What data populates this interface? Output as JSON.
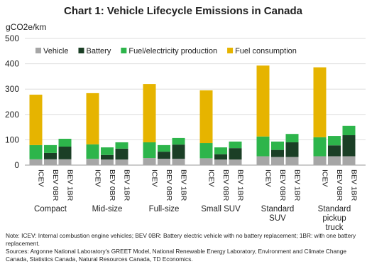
{
  "chart_data": {
    "type": "bar",
    "stacked": true,
    "title": "Chart 1: Vehicle Lifecycle Emissions in Canada",
    "y_label": "gCO2e/km",
    "groups": [
      "Compact",
      "Mid-size",
      "Full-size",
      "Small SUV",
      "Standard\nSUV",
      "Standard\npickup\ntruck"
    ],
    "subcategories": [
      "ICEV",
      "BEV 0BR",
      "BEV 1BR"
    ],
    "series": [
      {
        "name": "Vehicle",
        "color": "#a6a6a6",
        "values": [
          23,
          23,
          23,
          25,
          22,
          22,
          28,
          25,
          25,
          27,
          22,
          22,
          35,
          32,
          32,
          35,
          35,
          35
        ]
      },
      {
        "name": "Battery",
        "color": "#1b3f26",
        "values": [
          0,
          25,
          50,
          0,
          18,
          43,
          0,
          28,
          56,
          0,
          21,
          45,
          0,
          28,
          58,
          0,
          43,
          83
        ]
      },
      {
        "name": "Fuel/electricity production",
        "color": "#2db54b",
        "values": [
          56,
          31,
          31,
          57,
          30,
          25,
          62,
          26,
          26,
          60,
          27,
          26,
          78,
          33,
          33,
          75,
          37,
          37
        ]
      },
      {
        "name": "Fuel consumption",
        "color": "#e6b400",
        "values": [
          199,
          0,
          0,
          202,
          0,
          0,
          230,
          0,
          0,
          208,
          0,
          0,
          280,
          0,
          0,
          276,
          0,
          0
        ]
      }
    ],
    "ylim": [
      0,
      500
    ],
    "yticks": [
      0,
      100,
      200,
      300,
      400,
      500
    ],
    "grid": true,
    "legend": "top",
    "notes": [
      "Note: ICEV: Internal combustion engine vehicles; BEV 0BR: Battery electric vehicle with no battery replacement; 1BR: with one battery replacement.",
      "Sources: Argonne National Laboratory's GREET Model, National Renewable Energy Laboratory, Environment and Climate Change Canada, Statistics Canada, Natural Resources Canada, TD Economics."
    ]
  }
}
